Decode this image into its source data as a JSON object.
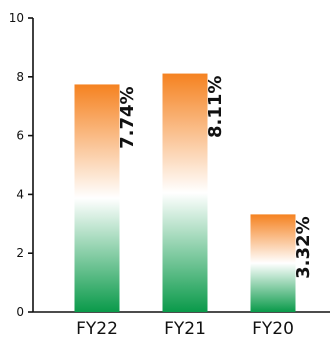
{
  "chart_data": {
    "type": "bar",
    "categories": [
      "FY22",
      "FY21",
      "FY20"
    ],
    "values": [
      7.74,
      8.11,
      3.32
    ],
    "data_labels": [
      "7.74%",
      "8.11%",
      "3.32%"
    ],
    "title": "",
    "xlabel": "",
    "ylabel": "",
    "ylim": [
      0,
      10
    ],
    "yticks": [
      0,
      2,
      4,
      6,
      8,
      10
    ],
    "grid": false,
    "legend": "none",
    "bar_gradient": {
      "top": "#f58220",
      "middle": "#ffffff",
      "bottom": "#0a9a4a"
    }
  }
}
